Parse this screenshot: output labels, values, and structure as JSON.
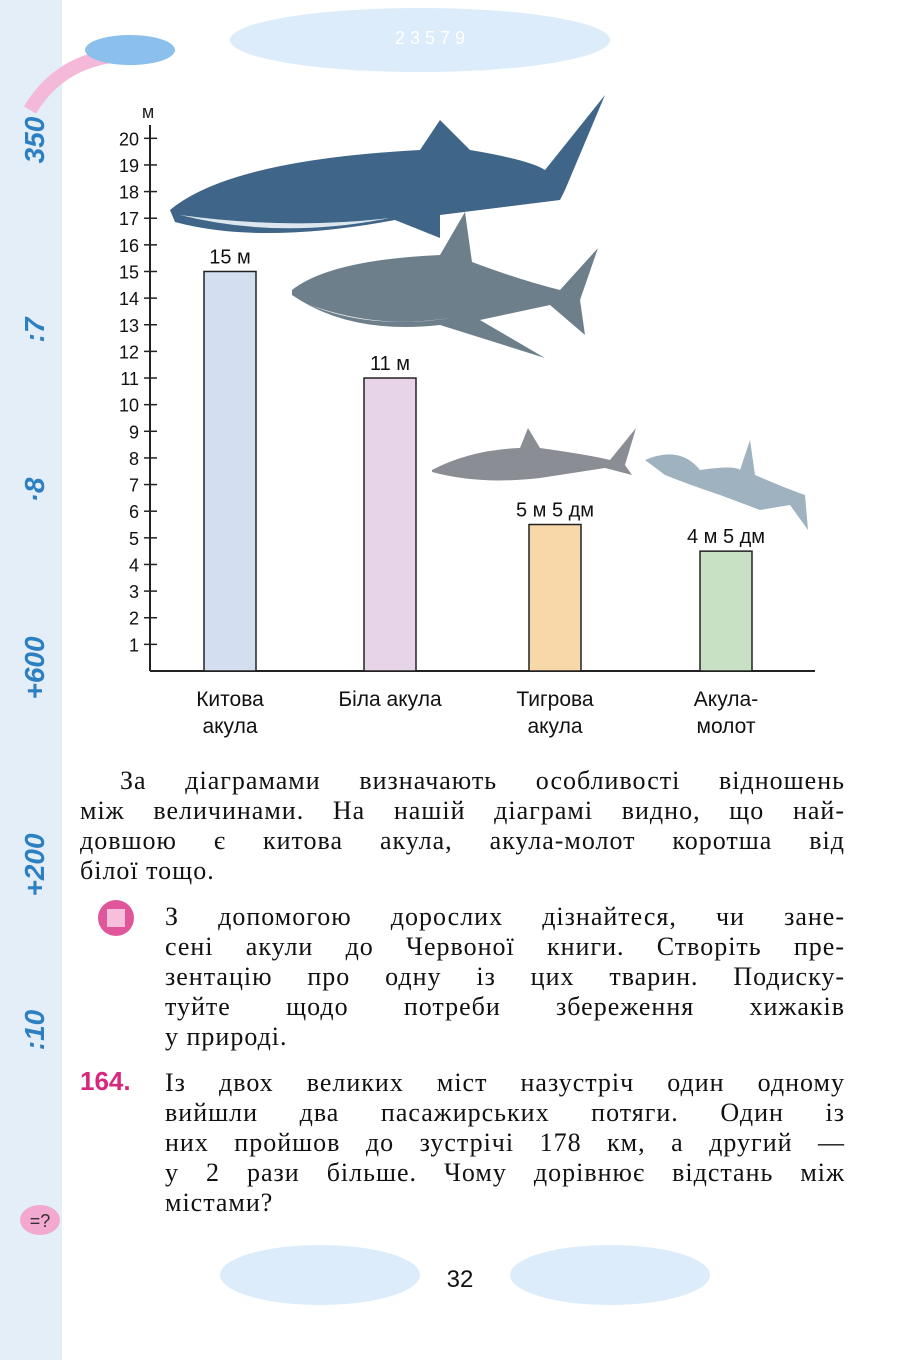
{
  "header_digits": "2 3 5 7 9",
  "margin_labels": [
    "350",
    ":7",
    "·8",
    "+600",
    "+200",
    ":10"
  ],
  "chart_data": {
    "type": "bar",
    "y_label": "м",
    "categories": [
      "Китова акула",
      "Біла акула",
      "Тигрова акула",
      "Акула-молот"
    ],
    "values": [
      15,
      11,
      5.5,
      4.5
    ],
    "value_labels": [
      "15 м",
      "11 м",
      "5 м 5 дм",
      "4 м 5 дм"
    ],
    "colors": [
      "#d3def1",
      "#e8d4e9",
      "#f8d8a8",
      "#c8e0c3"
    ],
    "ylim": [
      0,
      20.5
    ],
    "yticks": [
      1,
      2,
      3,
      4,
      5,
      6,
      7,
      8,
      9,
      10,
      11,
      12,
      13,
      14,
      15,
      16,
      17,
      18,
      19,
      20
    ]
  },
  "paragraph": [
    "За діаграмами визначають особливості відношень",
    "між величинами. На нашій діаграмі видно, що най-",
    "довшою є китова акула, акула-молот коротша від",
    "білої тощо."
  ],
  "task": [
    "З допомогою дорослих дізнайтеся, чи зане-",
    "сені акули до Червоної книги. Створіть пре-",
    "зентацію про одну із цих тварин. Подиску-",
    "туйте щодо потреби збереження хижаків",
    "у природі."
  ],
  "problem": {
    "number": "164.",
    "lines": [
      "Із двох великих міст назустріч один одному",
      "вийшли два пасажирських потяги. Один із",
      "них пройшов до зустрічі 178 км, а другий —",
      "у 2 рази більше. Чому дорівнює відстань між",
      "містами?"
    ]
  },
  "page_number": "32"
}
